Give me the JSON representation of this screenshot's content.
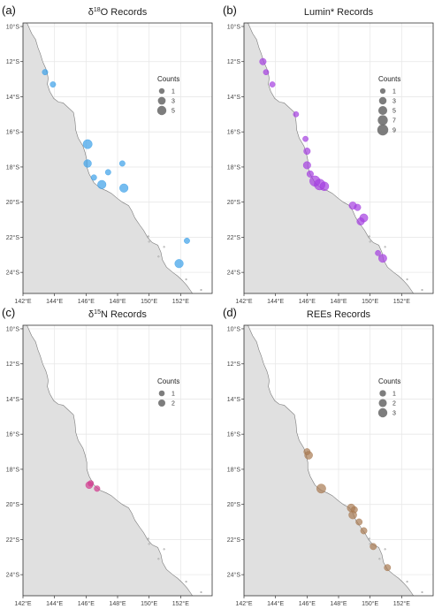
{
  "figure": {
    "panels": [
      {
        "id": "a",
        "tag": "(a)",
        "title_main": "O Records",
        "title_prefix": "δ",
        "title_sup": "18",
        "color": "#3aa0e8",
        "legend_title": "Counts",
        "legend_items": [
          {
            "label": "1",
            "count": 1
          },
          {
            "label": "3",
            "count": 3
          },
          {
            "label": "5",
            "count": 5
          }
        ],
        "points": [
          {
            "lon": 143.4,
            "lat": -12.6,
            "count": 1
          },
          {
            "lon": 143.9,
            "lat": -13.3,
            "count": 1
          },
          {
            "lon": 146.1,
            "lat": -16.7,
            "count": 5
          },
          {
            "lon": 146.1,
            "lat": -17.8,
            "count": 3
          },
          {
            "lon": 146.5,
            "lat": -18.6,
            "count": 1
          },
          {
            "lon": 147.0,
            "lat": -19.0,
            "count": 4
          },
          {
            "lon": 147.4,
            "lat": -18.3,
            "count": 1
          },
          {
            "lon": 148.3,
            "lat": -17.8,
            "count": 1
          },
          {
            "lon": 148.4,
            "lat": -19.2,
            "count": 4
          },
          {
            "lon": 152.4,
            "lat": -22.2,
            "count": 1
          },
          {
            "lon": 151.9,
            "lat": -23.5,
            "count": 4
          }
        ]
      },
      {
        "id": "b",
        "tag": "(b)",
        "title_main": "Lumin* Records",
        "title_prefix": "",
        "title_sup": "",
        "color": "#a43ee0",
        "legend_title": "Counts",
        "legend_items": [
          {
            "label": "1",
            "count": 1
          },
          {
            "label": "3",
            "count": 3
          },
          {
            "label": "5",
            "count": 5
          },
          {
            "label": "7",
            "count": 7
          },
          {
            "label": "9",
            "count": 9
          }
        ],
        "points": [
          {
            "lon": 143.2,
            "lat": -12.0,
            "count": 2
          },
          {
            "lon": 143.4,
            "lat": -12.6,
            "count": 1
          },
          {
            "lon": 143.8,
            "lat": -13.3,
            "count": 1
          },
          {
            "lon": 145.3,
            "lat": -15.0,
            "count": 1
          },
          {
            "lon": 145.9,
            "lat": -16.4,
            "count": 1
          },
          {
            "lon": 146.0,
            "lat": -17.1,
            "count": 2
          },
          {
            "lon": 146.0,
            "lat": -17.9,
            "count": 3
          },
          {
            "lon": 146.2,
            "lat": -18.4,
            "count": 2
          },
          {
            "lon": 146.5,
            "lat": -18.8,
            "count": 8
          },
          {
            "lon": 146.8,
            "lat": -19.0,
            "count": 9
          },
          {
            "lon": 147.1,
            "lat": -19.1,
            "count": 5
          },
          {
            "lon": 148.9,
            "lat": -20.2,
            "count": 3
          },
          {
            "lon": 149.2,
            "lat": -20.3,
            "count": 2
          },
          {
            "lon": 149.6,
            "lat": -20.9,
            "count": 4
          },
          {
            "lon": 149.4,
            "lat": -21.1,
            "count": 3
          },
          {
            "lon": 150.8,
            "lat": -23.2,
            "count": 4
          },
          {
            "lon": 150.5,
            "lat": -22.9,
            "count": 1
          }
        ]
      },
      {
        "id": "c",
        "tag": "(c)",
        "title_main": "N Records",
        "title_prefix": "δ",
        "title_sup": "15",
        "color": "#d13c8f",
        "legend_title": "Counts",
        "legend_items": [
          {
            "label": "1",
            "count": 1
          },
          {
            "label": "2",
            "count": 2
          }
        ],
        "points": [
          {
            "lon": 146.2,
            "lat": -18.9,
            "count": 2
          },
          {
            "lon": 146.3,
            "lat": -18.8,
            "count": 1
          },
          {
            "lon": 146.7,
            "lat": -19.1,
            "count": 1
          }
        ]
      },
      {
        "id": "d",
        "tag": "(d)",
        "title_main": "REEs Records",
        "title_prefix": "",
        "title_sup": "",
        "color": "#a87a52",
        "legend_title": "Counts",
        "legend_items": [
          {
            "label": "1",
            "count": 1
          },
          {
            "label": "2",
            "count": 2
          },
          {
            "label": "3",
            "count": 3
          }
        ],
        "points": [
          {
            "lon": 146.1,
            "lat": -17.2,
            "count": 2
          },
          {
            "lon": 146.0,
            "lat": -17.0,
            "count": 1
          },
          {
            "lon": 146.9,
            "lat": -19.1,
            "count": 3
          },
          {
            "lon": 148.8,
            "lat": -20.2,
            "count": 2
          },
          {
            "lon": 149.0,
            "lat": -20.3,
            "count": 1
          },
          {
            "lon": 148.9,
            "lat": -20.6,
            "count": 2
          },
          {
            "lon": 149.3,
            "lat": -21.0,
            "count": 1
          },
          {
            "lon": 149.6,
            "lat": -21.5,
            "count": 1
          },
          {
            "lon": 150.2,
            "lat": -22.4,
            "count": 1
          },
          {
            "lon": 151.1,
            "lat": -23.6,
            "count": 1
          }
        ]
      }
    ],
    "x_ticks": [
      "142°E",
      "144°E",
      "146°E",
      "148°E",
      "150°E",
      "152°E"
    ],
    "y_ticks": [
      "10°S",
      "12°S",
      "14°S",
      "16°S",
      "18°S",
      "20°S",
      "22°S",
      "24°S"
    ],
    "x_tick_values": [
      142,
      144,
      146,
      148,
      150,
      152
    ],
    "y_tick_values": [
      -10,
      -12,
      -14,
      -16,
      -18,
      -20,
      -22,
      -24
    ],
    "lon_range": [
      142,
      154
    ],
    "lat_range": [
      -25.2,
      -9.8
    ],
    "colors": {
      "land": "#e0e0e0",
      "coast": "#7a7a7a",
      "grid": "#e8e8e8",
      "frame": "#333333"
    }
  }
}
